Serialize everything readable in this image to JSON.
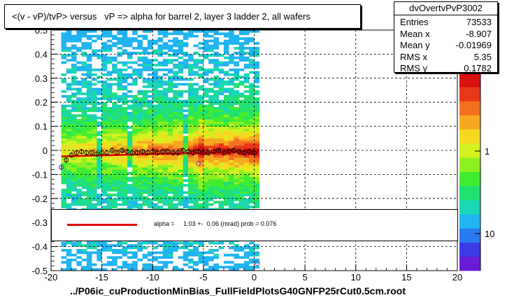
{
  "title": "<(v - vP)/tvP> versus   vP => alpha for barrel 2, layer 3 ladder 2, all wafers",
  "x_axis_title": "../P06ic_cuProductionMinBias_FullFieldPlotsG40GNFP25rCut0.5cm.root",
  "stats": {
    "name": "dvOvertvPvP3002",
    "rows": [
      {
        "label": "Entries",
        "value": "73533"
      },
      {
        "label": "Mean x",
        "value": "-8.907"
      },
      {
        "label": "Mean y",
        "value": "-0.01969"
      },
      {
        "label": "RMS x",
        "value": "5.35"
      },
      {
        "label": "RMS y",
        "value": "0.1782"
      }
    ]
  },
  "fit_legend": {
    "text": "alpha =     1.03 +-  0.06 (mrad) prob = 0.076",
    "line_color": "#e00000"
  },
  "chart_data": {
    "type": "heatmap",
    "xlim": [
      -20,
      20
    ],
    "ylim": [
      -0.5,
      0.5
    ],
    "x_ticks": [
      -20,
      -15,
      -10,
      -5,
      0,
      5,
      10,
      15,
      20
    ],
    "x_tick_labels": [
      "-20",
      "-15",
      "-10",
      "-5",
      "0",
      "5",
      "10",
      "15",
      "20"
    ],
    "y_ticks": [
      -0.5,
      -0.4,
      -0.3,
      -0.2,
      -0.1,
      0,
      0.1,
      0.2,
      0.3,
      0.4,
      0.5
    ],
    "y_tick_labels": [
      "-0.5",
      "-0.4",
      "-0.3",
      "-0.2",
      "-0.1",
      "0",
      "0.1",
      "0.2",
      "0.3",
      "0.4",
      "0.5"
    ],
    "grid": true,
    "filled_x_range": [
      -19,
      0.5
    ],
    "core_y": -0.005,
    "profile_points": {
      "x": [
        -19.0,
        -18.5,
        -18.0,
        -17.5,
        -17.0,
        -16.5,
        -16.0,
        -15.5,
        -15.0,
        -14.5,
        -14.0,
        -13.5,
        -13.0,
        -12.5,
        -12.0,
        -11.5,
        -11.0,
        -10.5,
        -10.0,
        -9.5,
        -9.0,
        -8.5,
        -8.0,
        -7.5,
        -7.0,
        -6.5,
        -6.0,
        -5.5,
        -5.0,
        -4.5,
        -4.0,
        -3.5,
        -3.0,
        -2.5,
        -2.0,
        -1.5,
        -1.0,
        -0.5,
        0.0
      ],
      "y": [
        -0.07,
        -0.04,
        -0.02,
        -0.01,
        -0.005,
        -0.01,
        -0.01,
        -0.015,
        -0.01,
        -0.01,
        0.0,
        -0.01,
        0.0,
        -0.005,
        -0.01,
        -0.01,
        -0.005,
        -0.01,
        -0.005,
        -0.01,
        -0.005,
        -0.005,
        -0.01,
        -0.01,
        0.0,
        -0.005,
        -0.01,
        -0.005,
        -0.01,
        -0.01,
        -0.005,
        0.0,
        -0.01,
        -0.005,
        0.0,
        -0.005,
        -0.01,
        -0.005,
        -0.01
      ]
    },
    "fit_line": {
      "x": [
        -19,
        0.5
      ],
      "y": [
        -0.025,
        -0.005
      ],
      "color": "#e00000"
    },
    "outlier_points": [
      {
        "x": -19,
        "y": -0.07
      },
      {
        "x": -5.5,
        "y": -0.055
      },
      {
        "x": 0.3,
        "y": -0.47
      }
    ],
    "palette": {
      "type": "color-scale",
      "tick_labels": [
        "1",
        "10"
      ],
      "tick_label_positions": [
        1,
        10
      ]
    }
  }
}
